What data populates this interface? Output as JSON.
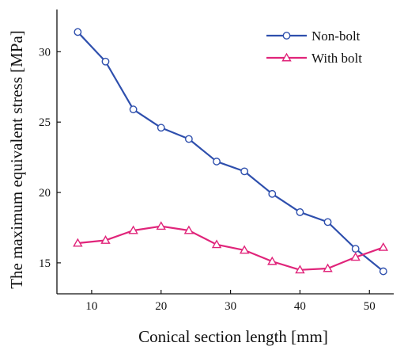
{
  "chart_data": {
    "type": "line",
    "title": "",
    "xlabel": "Conical section length  [mm]",
    "ylabel": "The maximum equivalent stress  [MPa]",
    "xlim": [
      5,
      53.5
    ],
    "ylim": [
      12.8,
      33
    ],
    "xticks": [
      10,
      20,
      30,
      40,
      50
    ],
    "yticks": [
      15,
      20,
      25,
      30
    ],
    "grid": false,
    "legend_position": "top-right",
    "x": [
      8,
      12,
      16,
      20,
      24,
      28,
      32,
      36,
      40,
      44,
      48,
      52
    ],
    "series": [
      {
        "name": "Non-bolt",
        "color": "#2e4fad",
        "marker": "circle",
        "values": [
          31.4,
          29.3,
          25.9,
          24.6,
          23.8,
          22.2,
          21.5,
          19.9,
          18.6,
          17.9,
          16.0,
          14.4
        ]
      },
      {
        "name": "With bolt",
        "color": "#e0247a",
        "marker": "triangle",
        "values": [
          16.4,
          16.6,
          17.3,
          17.6,
          17.3,
          16.3,
          15.9,
          15.1,
          14.5,
          14.6,
          15.4,
          16.1
        ]
      }
    ]
  }
}
